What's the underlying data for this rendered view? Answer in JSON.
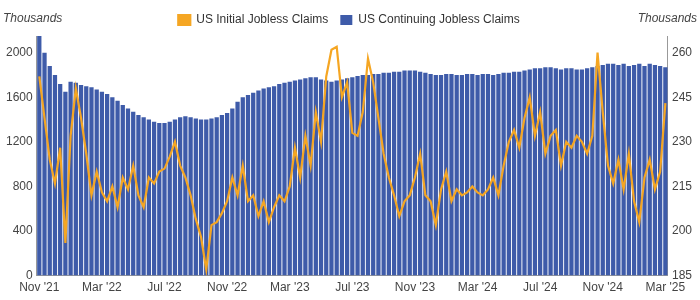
{
  "chart_data": {
    "type": "bar",
    "y_label": "Thousands",
    "y2_label": "Thousands",
    "legend": "top",
    "grid": false,
    "categories": [
      "Nov '21",
      null,
      null,
      null,
      null,
      null,
      null,
      null,
      null,
      null,
      null,
      null,
      "Mar '22",
      null,
      null,
      null,
      null,
      null,
      null,
      null,
      null,
      null,
      null,
      null,
      "Jul '22",
      null,
      null,
      null,
      null,
      null,
      null,
      null,
      null,
      null,
      null,
      null,
      "Nov '22",
      null,
      null,
      null,
      null,
      null,
      null,
      null,
      null,
      null,
      null,
      null,
      "Mar '23",
      null,
      null,
      null,
      null,
      null,
      null,
      null,
      null,
      null,
      null,
      null,
      "Jul '23",
      null,
      null,
      null,
      null,
      null,
      null,
      null,
      null,
      null,
      null,
      null,
      "Nov '23",
      null,
      null,
      null,
      null,
      null,
      null,
      null,
      null,
      null,
      null,
      null,
      "Mar '24",
      null,
      null,
      null,
      null,
      null,
      null,
      null,
      null,
      null,
      null,
      null,
      "Jul '24",
      null,
      null,
      null,
      null,
      null,
      null,
      null,
      null,
      null,
      null,
      null,
      "Nov '24",
      null,
      null,
      null,
      null,
      null,
      null,
      null,
      null,
      null,
      null,
      null,
      "Mar '25"
    ],
    "ylim": [
      0,
      2150
    ],
    "yticks": [
      0,
      400,
      800,
      1200,
      1600,
      2000
    ],
    "y2lim": [
      185,
      265.6
    ],
    "y2ticks": [
      185,
      200,
      215,
      230,
      245,
      260
    ],
    "series": [
      {
        "name": "US Continuing Jobless Claims",
        "type": "bar",
        "color": "#3e5ba9",
        "values": [
          2150,
          2000,
          1880,
          1800,
          1720,
          1650,
          1740,
          1730,
          1710,
          1700,
          1690,
          1670,
          1650,
          1630,
          1600,
          1570,
          1530,
          1500,
          1470,
          1440,
          1420,
          1400,
          1380,
          1370,
          1370,
          1380,
          1400,
          1420,
          1430,
          1420,
          1410,
          1400,
          1400,
          1410,
          1420,
          1440,
          1460,
          1500,
          1560,
          1600,
          1620,
          1640,
          1660,
          1680,
          1690,
          1700,
          1720,
          1730,
          1740,
          1750,
          1760,
          1770,
          1780,
          1780,
          1760,
          1750,
          1740,
          1750,
          1760,
          1770,
          1780,
          1790,
          1800,
          1800,
          1810,
          1810,
          1820,
          1820,
          1830,
          1830,
          1840,
          1840,
          1840,
          1830,
          1820,
          1810,
          1800,
          1800,
          1810,
          1810,
          1800,
          1800,
          1810,
          1810,
          1800,
          1810,
          1810,
          1800,
          1810,
          1820,
          1820,
          1830,
          1830,
          1840,
          1850,
          1860,
          1860,
          1870,
          1870,
          1860,
          1850,
          1860,
          1860,
          1850,
          1850,
          1860,
          1870,
          1880,
          1890,
          1900,
          1900,
          1890,
          1900,
          1880,
          1890,
          1900,
          1880,
          1900,
          1890,
          1880,
          1870
        ]
      },
      {
        "name": "US Initial Jobless Claims",
        "type": "line",
        "axis": "y2",
        "color": "#f5a623",
        "values": [
          252,
          238,
          224,
          216,
          228,
          196,
          232,
          248,
          238,
          226,
          212,
          220,
          213,
          210,
          215,
          208,
          218,
          214,
          222,
          212,
          208,
          218,
          216,
          220,
          221,
          225,
          230,
          222,
          218,
          212,
          204,
          198,
          187,
          202,
          203,
          206,
          210,
          218,
          212,
          222,
          210,
          212,
          205,
          210,
          203,
          208,
          212,
          210,
          215,
          228,
          218,
          232,
          222,
          240,
          230,
          252,
          261,
          262,
          245,
          250,
          233,
          232,
          240,
          258,
          250,
          238,
          226,
          218,
          212,
          205,
          210,
          212,
          218,
          226,
          212,
          210,
          202,
          214,
          220,
          210,
          214,
          212,
          213,
          215,
          213,
          212,
          214,
          218,
          212,
          222,
          230,
          234,
          228,
          238,
          245,
          232,
          240,
          226,
          232,
          234,
          222,
          230,
          228,
          232,
          230,
          226,
          232,
          260,
          240,
          222,
          216,
          224,
          214,
          226,
          210,
          203,
          218,
          224,
          214,
          220,
          243
        ]
      }
    ]
  }
}
